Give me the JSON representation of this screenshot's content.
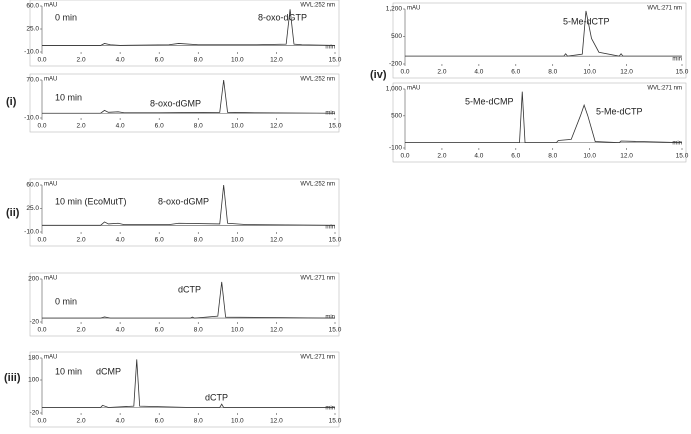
{
  "panel_labels": [
    "(i)",
    "(ii)",
    "(iii)",
    "(iv)"
  ],
  "chart_data": [
    {
      "type": "line",
      "y_label": "mAU",
      "x_label": "min",
      "wavelength": "WVL:252 nm",
      "annotations": [
        "0 min",
        "8-oxo-dGTP"
      ],
      "color": "#333333",
      "x": [
        0,
        3.0,
        3.2,
        3.5,
        4,
        6.5,
        7,
        8,
        10,
        11,
        12.5,
        12.7,
        12.9,
        13.3,
        15
      ],
      "values": [
        0,
        0,
        3,
        1,
        0,
        1,
        3,
        1,
        1,
        1,
        2,
        55,
        2,
        1,
        0
      ],
      "xlim": [
        0,
        15
      ],
      "ylim": [
        -10,
        60
      ],
      "xticks": [
        {
          "value": 0,
          "label": "0.0"
        },
        {
          "value": 2,
          "label": "2.0"
        },
        {
          "value": 4,
          "label": "4.0"
        },
        {
          "value": 6,
          "label": "6.0"
        },
        {
          "value": 8,
          "label": "8.0"
        },
        {
          "value": 10,
          "label": "10.0"
        },
        {
          "value": 12,
          "label": "12.0"
        },
        {
          "value": 15,
          "label": "15.0"
        }
      ],
      "yticks": [
        {
          "value": 60,
          "label": "60.0"
        },
        {
          "value": 25,
          "label": "25.0"
        },
        {
          "value": -10,
          "label": "-10.0"
        }
      ]
    },
    {
      "type": "line",
      "y_label": "mAU",
      "x_label": "min",
      "wavelength": "WVL:252 nm",
      "annotations": [
        "10 min",
        "8-oxo-dGMP"
      ],
      "color": "#333333",
      "x": [
        0,
        3,
        3.2,
        3.4,
        3.9,
        4.2,
        6,
        9.1,
        9.3,
        9.5,
        11,
        15
      ],
      "values": [
        0,
        0,
        6,
        2,
        3,
        1,
        1,
        2,
        70,
        2,
        1,
        0
      ],
      "xlim": [
        0,
        15
      ],
      "ylim": [
        -10,
        70
      ],
      "xticks": [
        {
          "value": 0,
          "label": "0.0"
        },
        {
          "value": 2,
          "label": "2.0"
        },
        {
          "value": 4,
          "label": "4.0"
        },
        {
          "value": 6,
          "label": "6.0"
        },
        {
          "value": 8,
          "label": "8.0"
        },
        {
          "value": 10,
          "label": "10.0"
        },
        {
          "value": 12,
          "label": "12.0"
        },
        {
          "value": 15,
          "label": "15.0"
        }
      ],
      "yticks": [
        {
          "value": 70,
          "label": "70.0"
        },
        {
          "value": -10,
          "label": "-10.0"
        }
      ]
    },
    {
      "type": "line",
      "y_label": "mAU",
      "x_label": "min",
      "wavelength": "WVL:252 nm",
      "annotations": [
        "10 min (EcoMutT)",
        "8-oxo-dGMP"
      ],
      "color": "#333333",
      "x": [
        0,
        3,
        3.2,
        3.4,
        3.9,
        4.2,
        6.5,
        7,
        9.1,
        9.3,
        9.5,
        10.5,
        15
      ],
      "values": [
        0,
        0,
        5,
        2,
        3,
        1,
        1,
        3,
        2,
        60,
        3,
        1,
        0
      ],
      "xlim": [
        0,
        15
      ],
      "ylim": [
        -10,
        60
      ],
      "xticks": [
        {
          "value": 0,
          "label": "0.0"
        },
        {
          "value": 2,
          "label": "2.0"
        },
        {
          "value": 4,
          "label": "4.0"
        },
        {
          "value": 6,
          "label": "6.0"
        },
        {
          "value": 8,
          "label": "8.0"
        },
        {
          "value": 10,
          "label": "10.0"
        },
        {
          "value": 12,
          "label": "12.0"
        },
        {
          "value": 15,
          "label": "15.0"
        }
      ],
      "yticks": [
        {
          "value": 60,
          "label": "60.0"
        },
        {
          "value": 25,
          "label": "25.0"
        },
        {
          "value": -10,
          "label": "-10.0"
        }
      ]
    },
    {
      "type": "line",
      "y_label": "mAU",
      "x_label": "min",
      "wavelength": "WVL:271 nm",
      "annotations": [
        "0 min",
        "dCTP"
      ],
      "color": "#333333",
      "x": [
        0,
        3,
        3.2,
        3.5,
        7.6,
        7.7,
        7.8,
        9.0,
        9.2,
        9.4,
        15
      ],
      "values": [
        0,
        0,
        6,
        0,
        0,
        5,
        0,
        10,
        185,
        5,
        0
      ],
      "xlim": [
        0,
        15
      ],
      "ylim": [
        -20,
        200
      ],
      "xticks": [
        {
          "value": 0,
          "label": "0.0"
        },
        {
          "value": 2,
          "label": "2.0"
        },
        {
          "value": 4,
          "label": "4.0"
        },
        {
          "value": 6,
          "label": "6.0"
        },
        {
          "value": 8,
          "label": "8.0"
        },
        {
          "value": 10,
          "label": "10.0"
        },
        {
          "value": 12,
          "label": "12.0"
        },
        {
          "value": 15,
          "label": "15.0"
        }
      ],
      "yticks": [
        200,
        -20
      ]
    },
    {
      "type": "line",
      "y_label": "mAU",
      "x_label": "min",
      "wavelength": "WVL:271 nm",
      "annotations": [
        "10 min",
        "dCMP",
        "dCTP"
      ],
      "color": "#333333",
      "x": [
        0,
        3,
        3.1,
        3.4,
        4.7,
        4.85,
        5.0,
        7.6,
        9.1,
        9.2,
        9.3,
        15
      ],
      "values": [
        0,
        0,
        8,
        0,
        5,
        175,
        5,
        0,
        0,
        12,
        0,
        0
      ],
      "xlim": [
        0,
        15
      ],
      "ylim": [
        -20,
        180
      ],
      "xticks": [
        {
          "value": 0,
          "label": "0.0"
        },
        {
          "value": 2,
          "label": "2.0"
        },
        {
          "value": 4,
          "label": "4.0"
        },
        {
          "value": 6,
          "label": "6.0"
        },
        {
          "value": 8,
          "label": "8.0"
        },
        {
          "value": 10,
          "label": "10.0"
        },
        {
          "value": 12,
          "label": "12.0"
        },
        {
          "value": 15,
          "label": "15.0"
        }
      ],
      "yticks": [
        180,
        100,
        -20
      ]
    },
    {
      "type": "line",
      "y_label": "mAU",
      "x_label": "min",
      "wavelength": "WVL:271 nm",
      "annotations": [
        "5-Me-dCTP"
      ],
      "color": "#333333",
      "x": [
        0,
        8.6,
        8.7,
        8.8,
        9.6,
        9.8,
        10.1,
        10.5,
        11.6,
        11.7,
        11.8,
        15
      ],
      "values": [
        0,
        0,
        60,
        0,
        50,
        1150,
        450,
        100,
        0,
        60,
        0,
        0
      ],
      "xlim": [
        0,
        15
      ],
      "ylim": [
        -200,
        1200
      ],
      "xticks": [
        {
          "value": 0,
          "label": "0.0"
        },
        {
          "value": 2,
          "label": "2.0"
        },
        {
          "value": 4,
          "label": "4.0"
        },
        {
          "value": 6,
          "label": "6.0"
        },
        {
          "value": 8,
          "label": "8.0"
        },
        {
          "value": 10,
          "label": "10.0"
        },
        {
          "value": 12,
          "label": "12.0"
        },
        {
          "value": 15,
          "label": "15.0"
        }
      ],
      "yticks": [
        {
          "value": 1200,
          "label": "1,200"
        },
        500,
        -200
      ]
    },
    {
      "type": "line",
      "y_label": "mAU",
      "x_label": "min",
      "wavelength": "WVL:271 nm",
      "annotations": [
        "5-Me-dCMP",
        "5-Me-dCTP"
      ],
      "color": "#333333",
      "x": [
        0,
        6.2,
        6.35,
        6.5,
        8.2,
        8.3,
        9.0,
        9.5,
        9.7,
        9.9,
        10.3,
        11.6,
        11.7,
        15
      ],
      "values": [
        0,
        0,
        950,
        0,
        0,
        40,
        60,
        500,
        700,
        500,
        20,
        0,
        30,
        0
      ],
      "xlim": [
        0,
        15
      ],
      "ylim": [
        -100,
        1000
      ],
      "xticks": [
        {
          "value": 0,
          "label": "0.0"
        },
        {
          "value": 2,
          "label": "2.0"
        },
        {
          "value": 4,
          "label": "4.0"
        },
        {
          "value": 6,
          "label": "6.0"
        },
        {
          "value": 8,
          "label": "8.0"
        },
        {
          "value": 10,
          "label": "10.0"
        },
        {
          "value": 12,
          "label": "12.0"
        },
        {
          "value": 15,
          "label": "15.0"
        }
      ],
      "yticks": [
        {
          "value": 1000,
          "label": "1,000"
        },
        500,
        -100
      ]
    }
  ]
}
